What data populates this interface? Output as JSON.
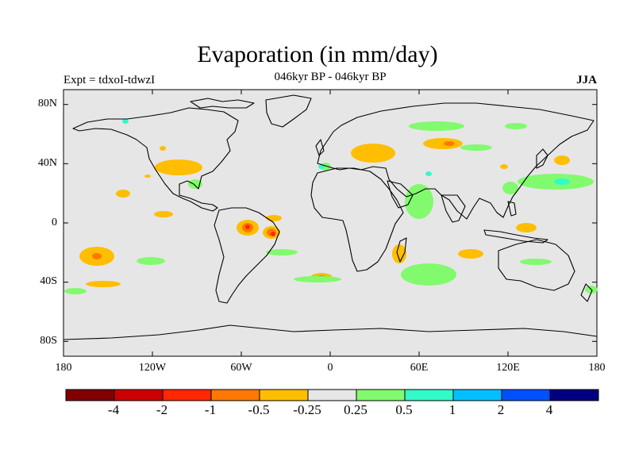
{
  "title": "Evaporation (in mm/day)",
  "subtitle": "046kyr BP - 046kyr BP",
  "expt_label": "Expt = tdxoI-tdwzI",
  "season": "JJA",
  "map": {
    "background_color": "#e6e6e6",
    "y_ticks": [
      "80N",
      "40N",
      "0",
      "40S",
      "80S"
    ],
    "x_ticks": [
      "180",
      "120W",
      "60W",
      "0",
      "60E",
      "120E",
      "180"
    ]
  },
  "colorbar": {
    "colors": [
      "#800000",
      "#cc0000",
      "#ff2800",
      "#ff7800",
      "#ffbe00",
      "#e6e6e6",
      "#82fa6e",
      "#32fac8",
      "#00c0ff",
      "#0050ff",
      "#000080"
    ],
    "labels": [
      "-4",
      "-2",
      "-1",
      "-0.5",
      "-0.25",
      "0.25",
      "0.5",
      "1",
      "2",
      "4"
    ]
  }
}
